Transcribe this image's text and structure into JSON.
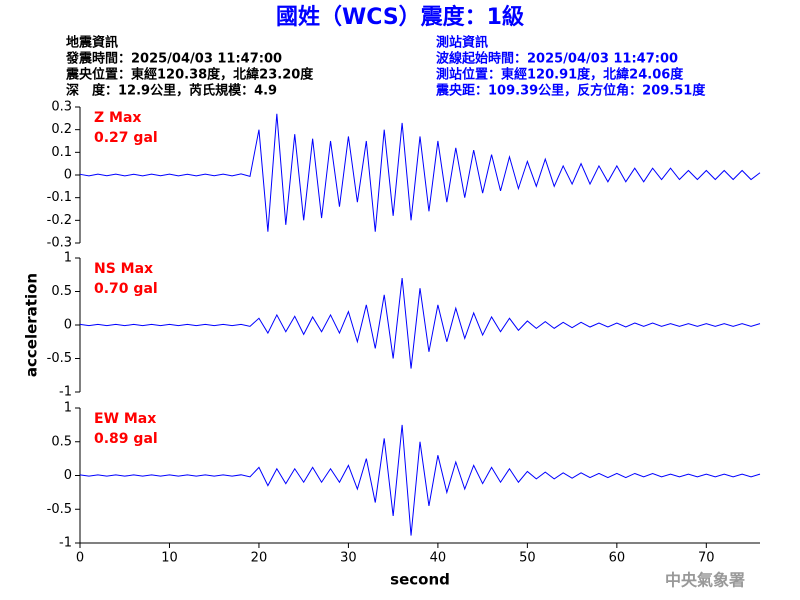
{
  "header": {
    "title": "國姓（WCS）震度：1級",
    "left": [
      "地震資訊",
      "發震時間：2025/04/03 11:47:00",
      "震央位置：東經120.38度，北緯23.20度",
      "深　度：12.9公里，芮氏規模：4.9"
    ],
    "right": [
      "測站資訊",
      "波線起始時間：2025/04/03 11:47:00",
      "測站位置：東經120.91度，北緯24.06度",
      "震央距：109.39公里，反方位角：209.51度"
    ]
  },
  "footer": "中央氣象署",
  "chart_data": [
    {
      "type": "line",
      "title": "Z Max",
      "annotation": "0.27 gal",
      "color": "#0000ff",
      "annotation_color": "#ff0000",
      "xlim": [
        0,
        76
      ],
      "ylim": [
        -0.3,
        0.3
      ],
      "yticks": [
        0.3,
        0.2,
        0.1,
        0,
        -0.1,
        -0.2,
        -0.3
      ],
      "x": [
        0,
        1,
        2,
        3,
        4,
        5,
        6,
        7,
        8,
        9,
        10,
        11,
        12,
        13,
        14,
        15,
        16,
        17,
        18,
        19,
        20,
        21,
        22,
        23,
        24,
        25,
        26,
        27,
        28,
        29,
        30,
        31,
        32,
        33,
        34,
        35,
        36,
        37,
        38,
        39,
        40,
        41,
        42,
        43,
        44,
        45,
        46,
        47,
        48,
        49,
        50,
        51,
        52,
        53,
        54,
        55,
        56,
        57,
        58,
        59,
        60,
        61,
        62,
        63,
        64,
        65,
        66,
        67,
        68,
        69,
        70,
        71,
        72,
        73,
        74,
        75,
        76
      ],
      "values": [
        0.003,
        -0.004,
        0.004,
        -0.003,
        0.004,
        -0.004,
        0.003,
        -0.004,
        0.004,
        -0.003,
        0.004,
        -0.004,
        0.003,
        -0.004,
        0.004,
        -0.003,
        0.004,
        -0.004,
        0.005,
        -0.006,
        0.2,
        -0.25,
        0.27,
        -0.22,
        0.18,
        -0.2,
        0.16,
        -0.19,
        0.15,
        -0.14,
        0.17,
        -0.12,
        0.15,
        -0.25,
        0.2,
        -0.18,
        0.23,
        -0.2,
        0.17,
        -0.16,
        0.15,
        -0.12,
        0.12,
        -0.1,
        0.11,
        -0.08,
        0.09,
        -0.07,
        0.08,
        -0.06,
        0.06,
        -0.05,
        0.07,
        -0.05,
        0.04,
        -0.04,
        0.05,
        -0.04,
        0.04,
        -0.03,
        0.04,
        -0.03,
        0.03,
        -0.03,
        0.03,
        -0.02,
        0.03,
        -0.02,
        0.02,
        -0.02,
        0.02,
        -0.02,
        0.02,
        -0.02,
        0.02,
        -0.02,
        0.01
      ]
    },
    {
      "type": "line",
      "title": "NS Max",
      "annotation": "0.70 gal",
      "color": "#0000ff",
      "annotation_color": "#ff0000",
      "ylabel": "acceleration",
      "xlim": [
        0,
        76
      ],
      "ylim": [
        -1,
        1
      ],
      "yticks": [
        1,
        0.5,
        0,
        -0.5,
        -1
      ],
      "x": [
        0,
        1,
        2,
        3,
        4,
        5,
        6,
        7,
        8,
        9,
        10,
        11,
        12,
        13,
        14,
        15,
        16,
        17,
        18,
        19,
        20,
        21,
        22,
        23,
        24,
        25,
        26,
        27,
        28,
        29,
        30,
        31,
        32,
        33,
        34,
        35,
        36,
        37,
        38,
        39,
        40,
        41,
        42,
        43,
        44,
        45,
        46,
        47,
        48,
        49,
        50,
        51,
        52,
        53,
        54,
        55,
        56,
        57,
        58,
        59,
        60,
        61,
        62,
        63,
        64,
        65,
        66,
        67,
        68,
        69,
        70,
        71,
        72,
        73,
        74,
        75,
        76
      ],
      "values": [
        0.01,
        -0.01,
        0.01,
        -0.01,
        0.01,
        -0.01,
        0.01,
        -0.01,
        0.01,
        -0.01,
        0.01,
        -0.01,
        0.01,
        -0.01,
        0.01,
        -0.01,
        0.01,
        -0.01,
        0.01,
        -0.02,
        0.1,
        -0.12,
        0.15,
        -0.1,
        0.13,
        -0.14,
        0.12,
        -0.1,
        0.15,
        -0.12,
        0.2,
        -0.25,
        0.3,
        -0.35,
        0.45,
        -0.5,
        0.7,
        -0.65,
        0.55,
        -0.4,
        0.3,
        -0.25,
        0.25,
        -0.2,
        0.18,
        -0.15,
        0.12,
        -0.1,
        0.1,
        -0.08,
        0.06,
        -0.05,
        0.05,
        -0.05,
        0.04,
        -0.04,
        0.04,
        -0.03,
        0.03,
        -0.03,
        0.03,
        -0.03,
        0.03,
        -0.02,
        0.03,
        -0.02,
        0.02,
        -0.02,
        0.02,
        -0.02,
        0.02,
        -0.02,
        0.02,
        -0.02,
        0.02,
        -0.02,
        0.02
      ]
    },
    {
      "type": "line",
      "title": "EW Max",
      "annotation": "0.89 gal",
      "color": "#0000ff",
      "annotation_color": "#ff0000",
      "xlabel": "second",
      "xlim": [
        0,
        76
      ],
      "ylim": [
        -1,
        1
      ],
      "yticks": [
        1,
        0.5,
        0,
        -0.5,
        -1
      ],
      "xticks": [
        0,
        10,
        20,
        30,
        40,
        50,
        60,
        70
      ],
      "x": [
        0,
        1,
        2,
        3,
        4,
        5,
        6,
        7,
        8,
        9,
        10,
        11,
        12,
        13,
        14,
        15,
        16,
        17,
        18,
        19,
        20,
        21,
        22,
        23,
        24,
        25,
        26,
        27,
        28,
        29,
        30,
        31,
        32,
        33,
        34,
        35,
        36,
        37,
        38,
        39,
        40,
        41,
        42,
        43,
        44,
        45,
        46,
        47,
        48,
        49,
        50,
        51,
        52,
        53,
        54,
        55,
        56,
        57,
        58,
        59,
        60,
        61,
        62,
        63,
        64,
        65,
        66,
        67,
        68,
        69,
        70,
        71,
        72,
        73,
        74,
        75,
        76
      ],
      "values": [
        0.01,
        -0.01,
        0.01,
        -0.01,
        0.01,
        -0.01,
        0.01,
        -0.01,
        0.01,
        -0.01,
        0.01,
        -0.01,
        0.01,
        -0.01,
        0.01,
        -0.01,
        0.01,
        -0.01,
        0.01,
        -0.02,
        0.12,
        -0.15,
        0.1,
        -0.12,
        0.1,
        -0.1,
        0.12,
        -0.1,
        0.1,
        -0.1,
        0.15,
        -0.2,
        0.25,
        -0.4,
        0.55,
        -0.6,
        0.75,
        -0.89,
        0.5,
        -0.45,
        0.3,
        -0.25,
        0.2,
        -0.2,
        0.15,
        -0.12,
        0.12,
        -0.1,
        0.1,
        -0.1,
        0.06,
        -0.05,
        0.05,
        -0.05,
        0.04,
        -0.04,
        0.04,
        -0.03,
        0.03,
        -0.03,
        0.03,
        -0.03,
        0.03,
        -0.02,
        0.03,
        -0.02,
        0.02,
        -0.02,
        0.02,
        -0.02,
        0.02,
        -0.02,
        0.02,
        -0.02,
        0.02,
        -0.02,
        0.02
      ]
    }
  ]
}
